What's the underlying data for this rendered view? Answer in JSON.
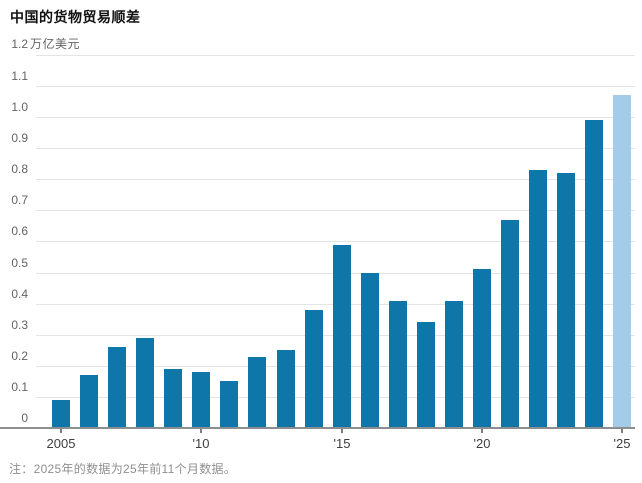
{
  "header": {
    "title": "中国的货物贸易顺差"
  },
  "footnote": "注：2025年的数据为25年前11个月数据。",
  "colors": {
    "bar": "#0e76a9",
    "bar_highlight": "#a4cbe8",
    "gridline": "#e4e4e4",
    "axis_line": "#8e8e8e",
    "title_text": "#111111",
    "tick_text": "#636363"
  },
  "chart_data": {
    "type": "bar",
    "title": "中国的货物贸易顺差",
    "unit_tick": "1.2",
    "unit_text": "万亿美元",
    "ylabel": "万亿美元",
    "ylim": [
      0,
      1.2
    ],
    "grid": "horizontal",
    "legend": "none",
    "categories": [
      2005,
      2006,
      2007,
      2008,
      2009,
      2010,
      2011,
      2012,
      2013,
      2014,
      2015,
      2016,
      2017,
      2018,
      2019,
      2020,
      2021,
      2022,
      2023,
      2024,
      2025
    ],
    "values": [
      0.09,
      0.17,
      0.26,
      0.29,
      0.19,
      0.18,
      0.15,
      0.23,
      0.25,
      0.38,
      0.59,
      0.5,
      0.41,
      0.34,
      0.41,
      0.51,
      0.67,
      0.83,
      0.82,
      0.99,
      1.07
    ],
    "highlight_index": 20,
    "y_ticks": [
      "0",
      "0.1",
      "0.2",
      "0.3",
      "0.4",
      "0.5",
      "0.6",
      "0.7",
      "0.8",
      "0.9",
      "1.0",
      "1.1"
    ],
    "x_ticks": [
      {
        "index": 0,
        "label": "2005"
      },
      {
        "index": 5,
        "label": "'10"
      },
      {
        "index": 10,
        "label": "'15"
      },
      {
        "index": 15,
        "label": "'20"
      },
      {
        "index": 20,
        "label": "'25"
      }
    ]
  }
}
